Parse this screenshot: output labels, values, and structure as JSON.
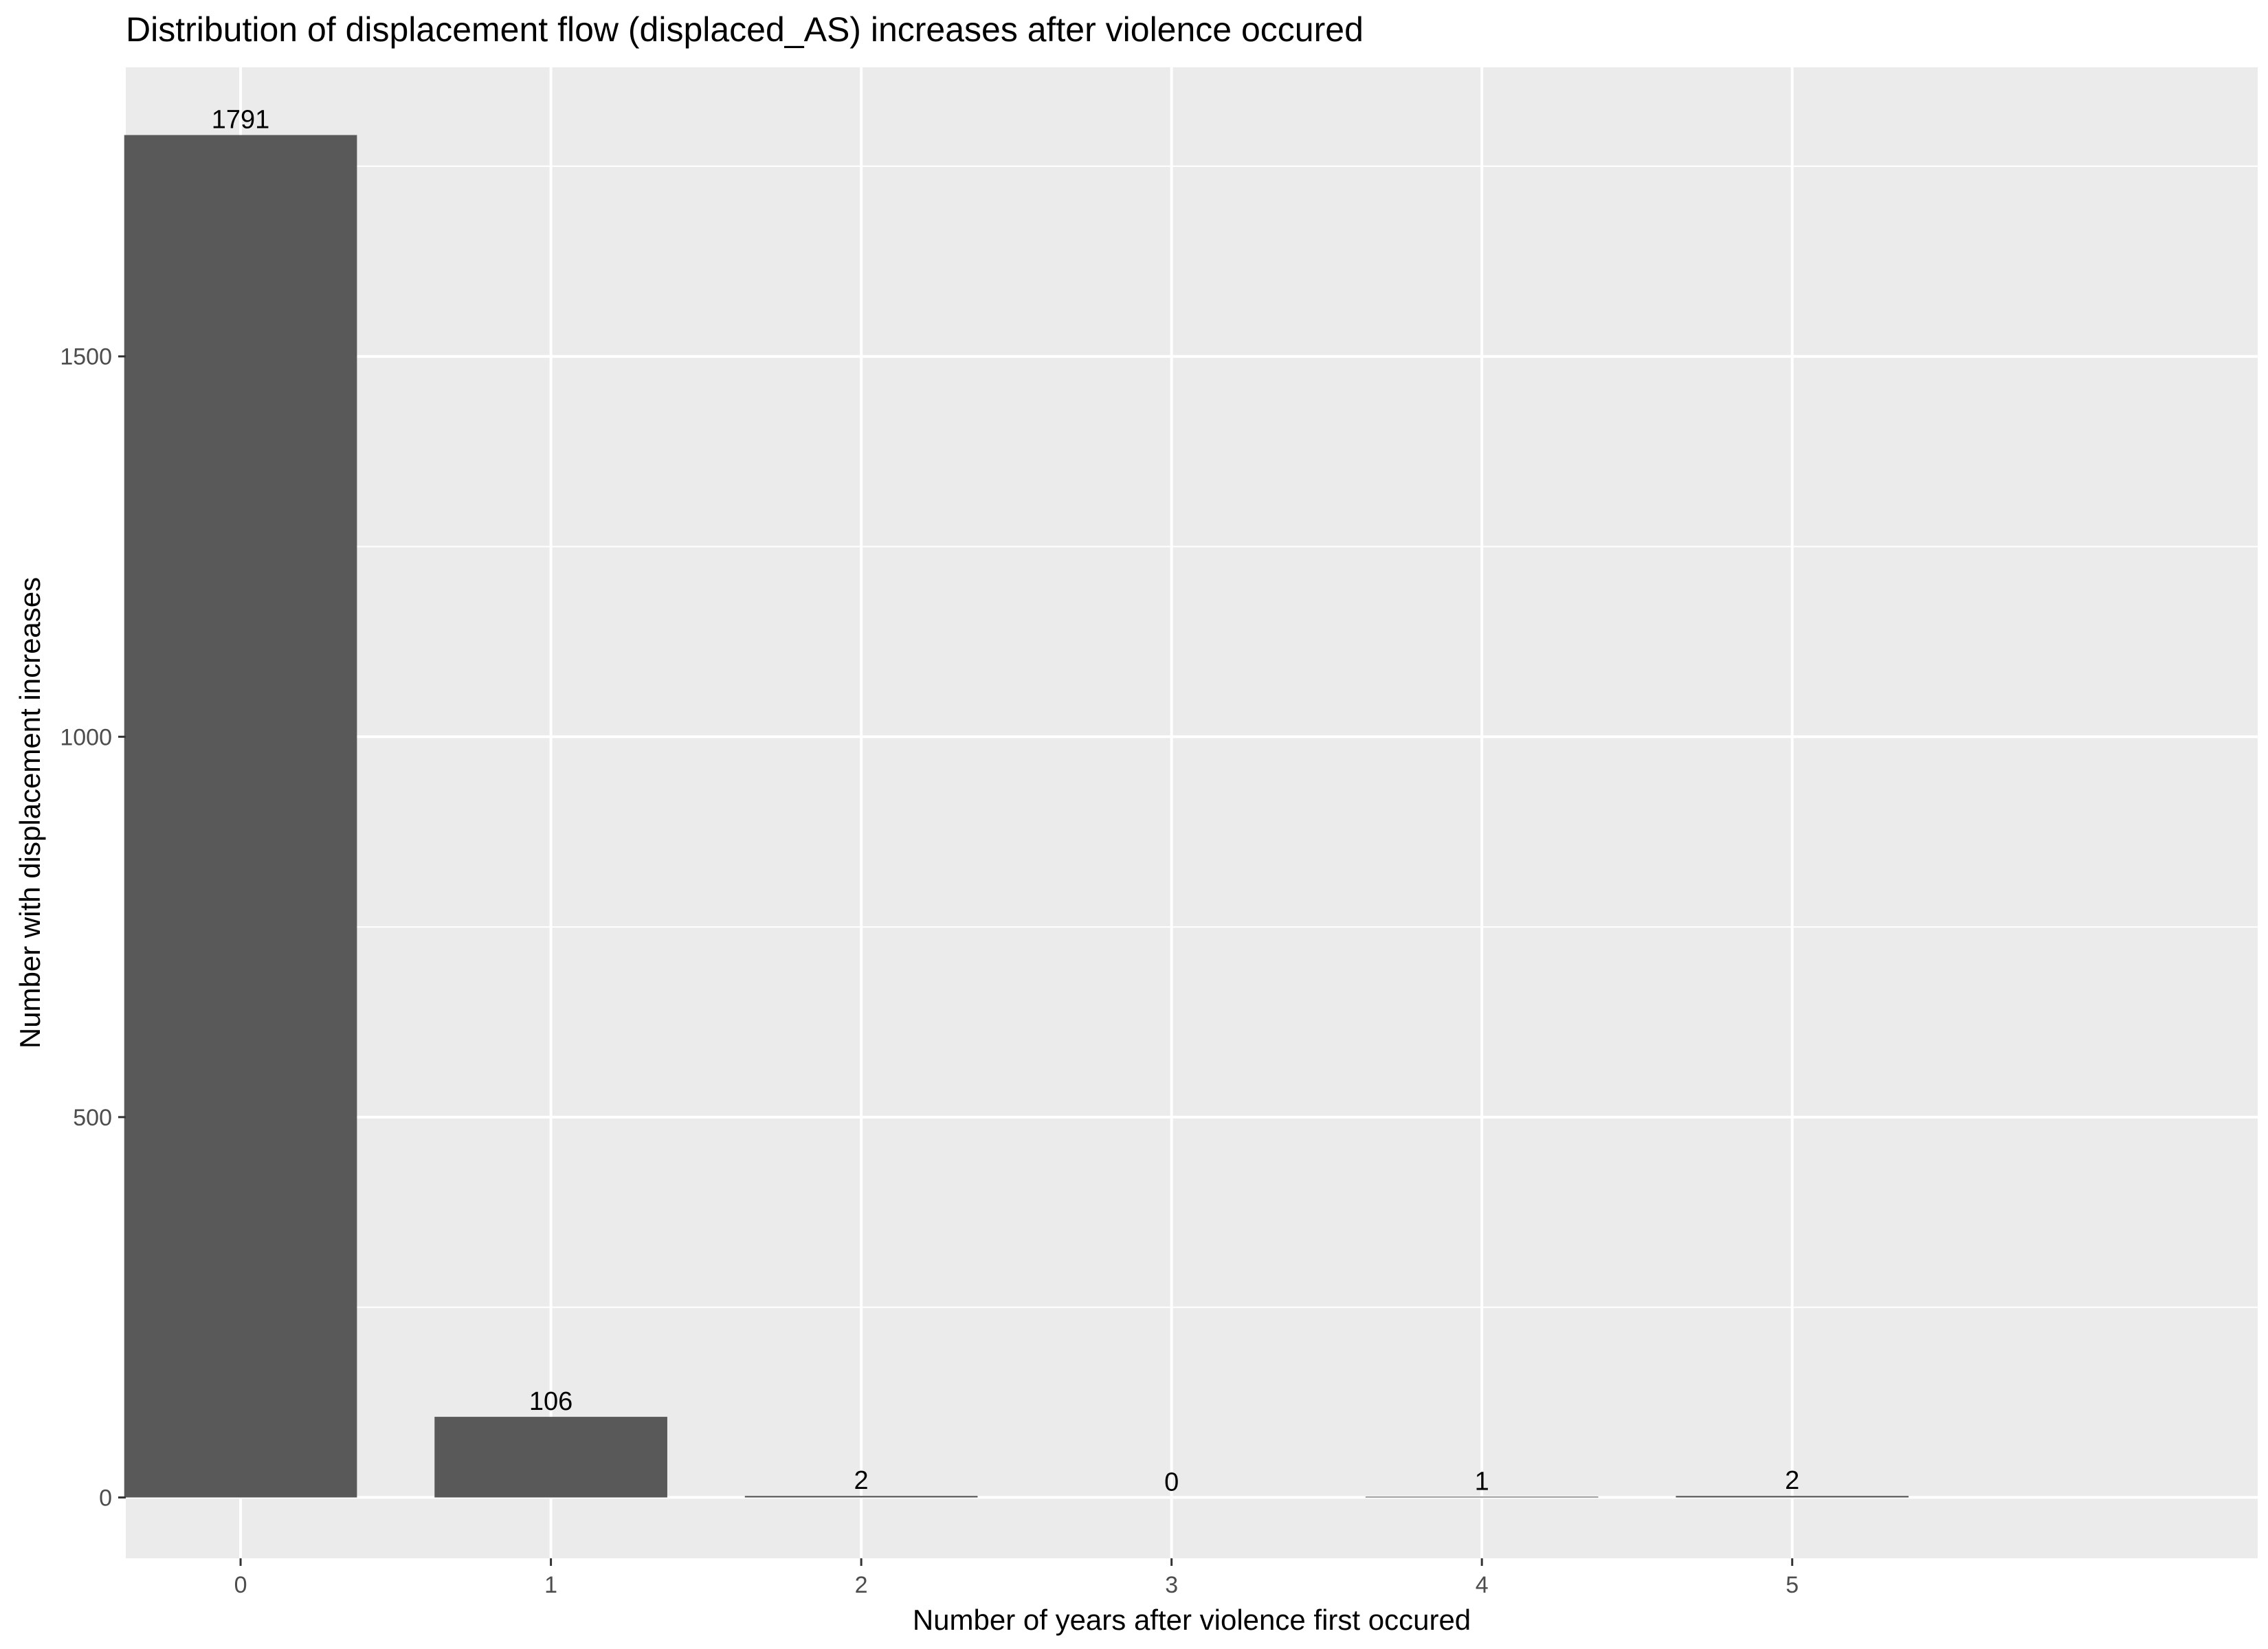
{
  "chart_data": {
    "type": "bar",
    "title": "Distribution of displacement flow (displaced_AS) increases after violence occured",
    "xlabel": "Number of years after violence first occured",
    "ylabel": "Number with displacement increases",
    "categories": [
      "0",
      "1",
      "2",
      "3",
      "4",
      "5"
    ],
    "values": [
      1791,
      106,
      2,
      0,
      1,
      2
    ],
    "data_labels": [
      "1791",
      "106",
      "2",
      "0",
      "1",
      "2"
    ],
    "x_ticks": [
      "0",
      "1",
      "2",
      "3",
      "4",
      "5"
    ],
    "y_ticks": [
      0,
      500,
      1000,
      1500
    ],
    "y_tick_labels": [
      "0",
      "500",
      "1000",
      "1500"
    ],
    "xlim": [
      -0.37,
      6.5
    ],
    "ylim": [
      -80,
      1880
    ],
    "grid": true,
    "colors": {
      "bar": "#595959",
      "panel": "#ebebeb",
      "grid": "#ffffff",
      "tick_text": "#4d4d4d",
      "text": "#000000"
    }
  }
}
